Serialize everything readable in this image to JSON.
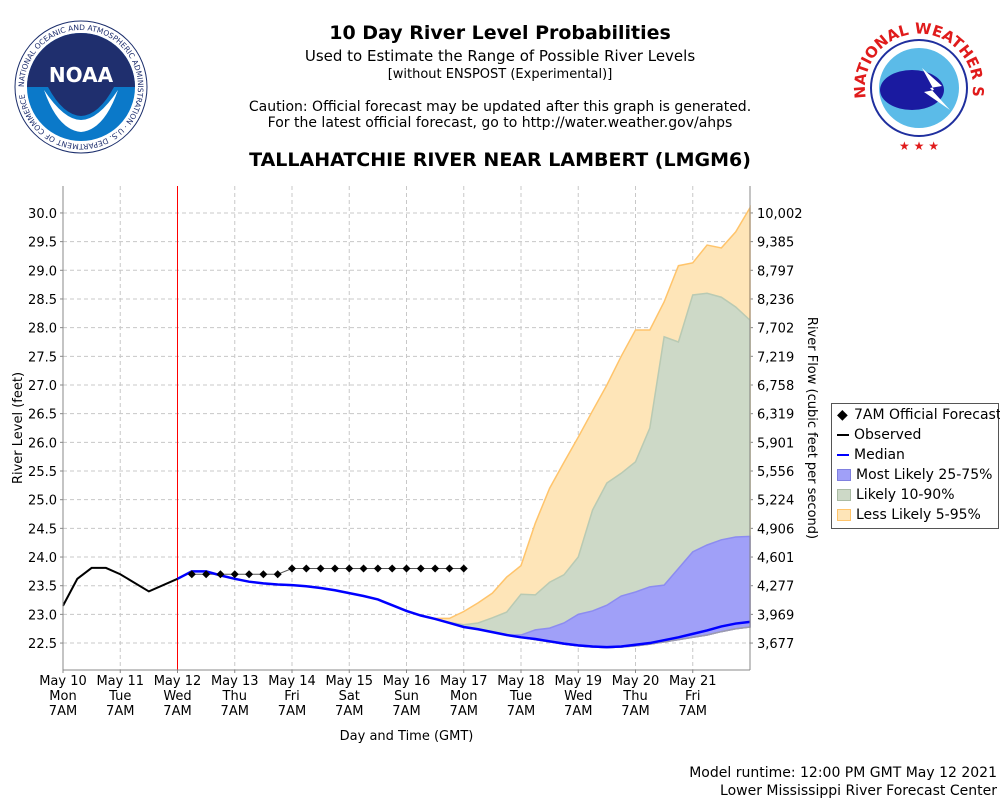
{
  "header": {
    "title": "10 Day River Level Probabilities",
    "subtitle": "Used to Estimate the Range of Possible River Levels",
    "subtitle2": "[without ENSPOST (Experimental)]",
    "caution1": "Caution: Official forecast may be updated after this graph is generated.",
    "caution2": "For the latest official forecast, go to http://water.weather.gov/ahps",
    "station": "TALLAHATCHIE RIVER NEAR LAMBERT (LMGM6)"
  },
  "logos": {
    "noaa": {
      "text": "NOAA",
      "ring": "NATIONAL OCEANIC AND ATMOSPHERIC ADMINISTRATION · U.S. DEPARTMENT OF COMMERCE"
    },
    "nws": {
      "ring": "NATIONAL WEATHER SERVICE"
    }
  },
  "footer": {
    "runtime": "Model runtime: 12:00 PM GMT May 12 2021",
    "center": "Lower Mississippi River Forecast Center"
  },
  "colors": {
    "observed": "#000000",
    "median": "#0000ff",
    "forecast": "#000000",
    "band_25_75": "#a0a0f8",
    "band_10_90": "#cdd9c7",
    "band_5_95": "#fee5b8",
    "band_5_95_edge": "#ffc46b",
    "now_line": "#ff0000",
    "grid": "#c8c8c8"
  },
  "chart_data": {
    "type": "area",
    "title": "TALLAHATCHIE RIVER NEAR LAMBERT (LMGM6)",
    "xlabel": "Day and Time (GMT)",
    "ylabel": "River Level (feet)",
    "ylabel_right": "River Flow (cubic feet per second)",
    "xlim": [
      "2021-05-10T07:00Z",
      "2021-05-22T07:00Z"
    ],
    "ylim": [
      22.03,
      30.47
    ],
    "grid": true,
    "legend_placement": "right",
    "now": "2021-05-12T07:00Z",
    "x_ticks": [
      {
        "date": "2021-05-10T07:00Z",
        "l1": "May 10",
        "l2": "Mon",
        "l3": "7AM"
      },
      {
        "date": "2021-05-11T07:00Z",
        "l1": "May 11",
        "l2": "Tue",
        "l3": "7AM"
      },
      {
        "date": "2021-05-12T07:00Z",
        "l1": "May 12",
        "l2": "Wed",
        "l3": "7AM"
      },
      {
        "date": "2021-05-13T07:00Z",
        "l1": "May 13",
        "l2": "Thu",
        "l3": "7AM"
      },
      {
        "date": "2021-05-14T07:00Z",
        "l1": "May 14",
        "l2": "Fri",
        "l3": "7AM"
      },
      {
        "date": "2021-05-15T07:00Z",
        "l1": "May 15",
        "l2": "Sat",
        "l3": "7AM"
      },
      {
        "date": "2021-05-16T07:00Z",
        "l1": "May 16",
        "l2": "Sun",
        "l3": "7AM"
      },
      {
        "date": "2021-05-17T07:00Z",
        "l1": "May 17",
        "l2": "Mon",
        "l3": "7AM"
      },
      {
        "date": "2021-05-18T07:00Z",
        "l1": "May 18",
        "l2": "Tue",
        "l3": "7AM"
      },
      {
        "date": "2021-05-19T07:00Z",
        "l1": "May 19",
        "l2": "Wed",
        "l3": "7AM"
      },
      {
        "date": "2021-05-20T07:00Z",
        "l1": "May 20",
        "l2": "Thu",
        "l3": "7AM"
      },
      {
        "date": "2021-05-21T07:00Z",
        "l1": "May 21",
        "l2": "Fri",
        "l3": "7AM"
      }
    ],
    "y_ticks": [
      {
        "stage": "30.0",
        "flow": "10,002"
      },
      {
        "stage": "29.5",
        "flow": "9,385"
      },
      {
        "stage": "29.0",
        "flow": "8,797"
      },
      {
        "stage": "28.5",
        "flow": "8,236"
      },
      {
        "stage": "28.0",
        "flow": "7,702"
      },
      {
        "stage": "27.5",
        "flow": "7,219"
      },
      {
        "stage": "27.0",
        "flow": "6,758"
      },
      {
        "stage": "26.5",
        "flow": "6,319"
      },
      {
        "stage": "26.0",
        "flow": "5,901"
      },
      {
        "stage": "25.5",
        "flow": "5,556"
      },
      {
        "stage": "25.0",
        "flow": "5,224"
      },
      {
        "stage": "24.5",
        "flow": "4,906"
      },
      {
        "stage": "24.0",
        "flow": "4,601"
      },
      {
        "stage": "23.5",
        "flow": "4,277"
      },
      {
        "stage": "23.0",
        "flow": "3,969"
      },
      {
        "stage": "22.5",
        "flow": "3,677"
      }
    ],
    "legend": [
      "7AM Official Forecast",
      "Observed",
      "Median",
      "Most Likely 25-75%",
      "Likely 10-90%",
      "Less Likely 5-95%"
    ],
    "observed": {
      "x": [
        "2021-05-10T07:00Z",
        "2021-05-10T13:00Z",
        "2021-05-10T19:00Z",
        "2021-05-11T01:00Z",
        "2021-05-11T07:00Z",
        "2021-05-11T19:00Z",
        "2021-05-12T07:00Z"
      ],
      "y": [
        23.15,
        23.62,
        23.81,
        23.81,
        23.7,
        23.4,
        23.62
      ]
    },
    "official_forecast": {
      "x": [
        "2021-05-12T13:00Z",
        "2021-05-12T19:00Z",
        "2021-05-13T01:00Z",
        "2021-05-13T07:00Z",
        "2021-05-13T13:00Z",
        "2021-05-13T19:00Z",
        "2021-05-14T01:00Z",
        "2021-05-14T07:00Z",
        "2021-05-14T13:00Z",
        "2021-05-14T19:00Z",
        "2021-05-15T01:00Z",
        "2021-05-15T07:00Z",
        "2021-05-15T13:00Z",
        "2021-05-15T19:00Z",
        "2021-05-16T01:00Z",
        "2021-05-16T07:00Z",
        "2021-05-16T13:00Z",
        "2021-05-16T19:00Z",
        "2021-05-17T01:00Z",
        "2021-05-17T07:00Z"
      ],
      "y": [
        23.7,
        23.7,
        23.7,
        23.7,
        23.7,
        23.7,
        23.7,
        23.8,
        23.8,
        23.8,
        23.8,
        23.8,
        23.8,
        23.8,
        23.8,
        23.8,
        23.8,
        23.8,
        23.8,
        23.8
      ]
    },
    "median": {
      "x": [
        "2021-05-12T07:00Z",
        "2021-05-12T13:00Z",
        "2021-05-12T19:00Z",
        "2021-05-13T01:00Z",
        "2021-05-13T07:00Z",
        "2021-05-13T13:00Z",
        "2021-05-13T19:00Z",
        "2021-05-14T01:00Z",
        "2021-05-14T07:00Z",
        "2021-05-14T13:00Z",
        "2021-05-14T19:00Z",
        "2021-05-15T01:00Z",
        "2021-05-15T07:00Z",
        "2021-05-15T13:00Z",
        "2021-05-15T19:00Z",
        "2021-05-16T01:00Z",
        "2021-05-16T07:00Z",
        "2021-05-16T13:00Z",
        "2021-05-16T19:00Z",
        "2021-05-17T01:00Z",
        "2021-05-17T07:00Z",
        "2021-05-17T13:00Z",
        "2021-05-17T19:00Z",
        "2021-05-18T01:00Z",
        "2021-05-18T07:00Z",
        "2021-05-18T13:00Z",
        "2021-05-18T19:00Z",
        "2021-05-19T01:00Z",
        "2021-05-19T07:00Z",
        "2021-05-19T13:00Z",
        "2021-05-19T19:00Z",
        "2021-05-20T01:00Z",
        "2021-05-20T07:00Z",
        "2021-05-20T13:00Z",
        "2021-05-20T19:00Z",
        "2021-05-21T01:00Z",
        "2021-05-21T07:00Z",
        "2021-05-21T13:00Z",
        "2021-05-21T19:00Z",
        "2021-05-22T01:00Z",
        "2021-05-22T07:00Z"
      ],
      "y": [
        23.62,
        23.75,
        23.75,
        23.68,
        23.62,
        23.57,
        23.54,
        23.52,
        23.51,
        23.49,
        23.46,
        23.42,
        23.37,
        23.32,
        23.26,
        23.16,
        23.06,
        22.98,
        22.92,
        22.85,
        22.78,
        22.74,
        22.69,
        22.64,
        22.6,
        22.57,
        22.53,
        22.49,
        22.46,
        22.44,
        22.43,
        22.44,
        22.47,
        22.5,
        22.55,
        22.6,
        22.66,
        22.72,
        22.79,
        22.84,
        22.87
      ]
    },
    "bands": {
      "x": [
        "2021-05-16T19:00Z",
        "2021-05-17T01:00Z",
        "2021-05-17T07:00Z",
        "2021-05-17T13:00Z",
        "2021-05-17T19:00Z",
        "2021-05-18T01:00Z",
        "2021-05-18T07:00Z",
        "2021-05-18T13:00Z",
        "2021-05-18T19:00Z",
        "2021-05-19T01:00Z",
        "2021-05-19T07:00Z",
        "2021-05-19T13:00Z",
        "2021-05-19T19:00Z",
        "2021-05-20T01:00Z",
        "2021-05-20T07:00Z",
        "2021-05-20T13:00Z",
        "2021-05-20T19:00Z",
        "2021-05-21T01:00Z",
        "2021-05-21T07:00Z",
        "2021-05-21T13:00Z",
        "2021-05-21T19:00Z",
        "2021-05-22T01:00Z",
        "2021-05-22T07:00Z"
      ],
      "p95": [
        22.93,
        22.93,
        23.05,
        23.2,
        23.37,
        23.65,
        23.85,
        24.59,
        25.2,
        25.65,
        26.09,
        26.55,
        27.0,
        27.5,
        27.96,
        27.96,
        28.45,
        29.08,
        29.13,
        29.44,
        29.39,
        29.67,
        30.09
      ],
      "p90": [
        22.92,
        22.86,
        22.82,
        22.85,
        22.94,
        23.04,
        23.35,
        23.34,
        23.56,
        23.69,
        24.0,
        24.82,
        25.29,
        25.46,
        25.66,
        26.25,
        27.84,
        27.75,
        28.57,
        28.6,
        28.53,
        28.36,
        28.13
      ],
      "p75": [
        22.92,
        22.85,
        22.78,
        22.74,
        22.69,
        22.64,
        22.64,
        22.73,
        22.76,
        22.85,
        23.0,
        23.06,
        23.16,
        23.32,
        23.39,
        23.48,
        23.51,
        23.8,
        24.09,
        24.21,
        24.3,
        24.35,
        24.36
      ],
      "p25": [
        22.92,
        22.85,
        22.78,
        22.74,
        22.69,
        22.64,
        22.6,
        22.56,
        22.52,
        22.48,
        22.45,
        22.43,
        22.42,
        22.43,
        22.45,
        22.48,
        22.52,
        22.56,
        22.6,
        22.64,
        22.7,
        22.75,
        22.78
      ],
      "p10": [
        22.92,
        22.85,
        22.78,
        22.74,
        22.69,
        22.64,
        22.6,
        22.56,
        22.52,
        22.48,
        22.45,
        22.43,
        22.42,
        22.43,
        22.45,
        22.48,
        22.52,
        22.56,
        22.6,
        22.64,
        22.7,
        22.75,
        22.78
      ],
      "p5": [
        22.92,
        22.85,
        22.78,
        22.74,
        22.69,
        22.64,
        22.6,
        22.56,
        22.52,
        22.48,
        22.45,
        22.43,
        22.42,
        22.43,
        22.45,
        22.48,
        22.52,
        22.56,
        22.6,
        22.64,
        22.7,
        22.75,
        22.78
      ]
    }
  }
}
